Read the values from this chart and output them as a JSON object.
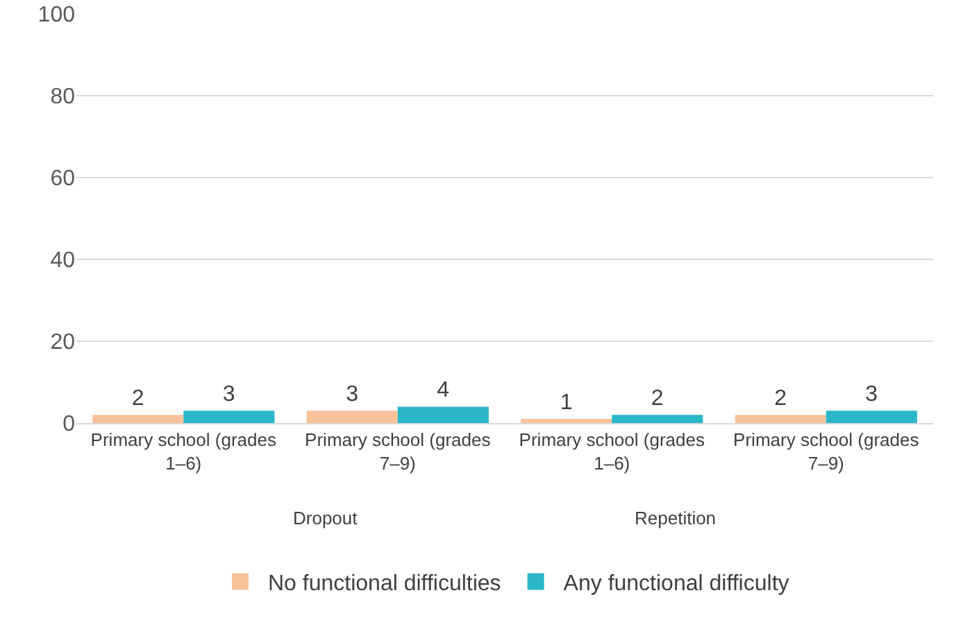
{
  "chart_data": {
    "type": "bar",
    "categories": [
      "Primary school (grades 1–6)",
      "Primary school (grades 7–9)",
      "Primary school (grades 1–6)",
      "Primary school (grades 7–9)"
    ],
    "series": [
      {
        "name": "No functional difficulties",
        "color": "#f8c39b",
        "values": [
          2,
          3,
          1,
          2
        ]
      },
      {
        "name": "Any functional difficulty",
        "color": "#2bb7c7",
        "values": [
          3,
          4,
          2,
          3
        ]
      }
    ],
    "annotations": [
      "Dropout",
      "Repetition"
    ],
    "ylim": [
      0,
      100
    ],
    "yticks": [
      0,
      20,
      40,
      60,
      80,
      100
    ],
    "grid": "y",
    "legend": "bottom",
    "data_labels": true
  }
}
